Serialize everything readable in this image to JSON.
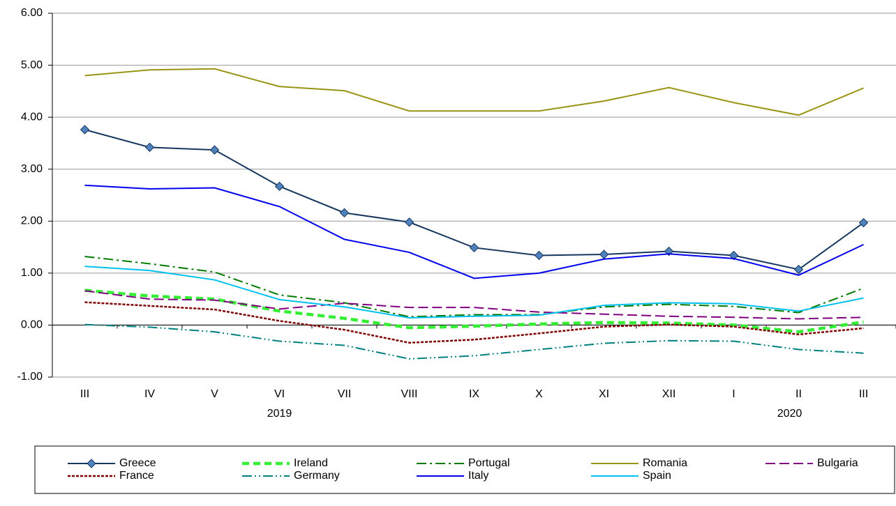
{
  "chart_data": {
    "type": "line",
    "categories": [
      "III",
      "IV",
      "V",
      "VI",
      "VII",
      "VIII",
      "IX",
      "X",
      "XI",
      "XII",
      "I",
      "II",
      "III"
    ],
    "x_groups": [
      "2019",
      "2020"
    ],
    "ylim": [
      -1,
      6
    ],
    "yticks": [
      {
        "value": -1,
        "label": "-1.00"
      },
      {
        "value": 0,
        "label": "0.00"
      },
      {
        "value": 1,
        "label": "1.00"
      },
      {
        "value": 2,
        "label": "2.00"
      },
      {
        "value": 3,
        "label": "3.00"
      },
      {
        "value": 4,
        "label": "4.00"
      },
      {
        "value": 5,
        "label": "5.00"
      },
      {
        "value": 6,
        "label": "6.00"
      }
    ],
    "grid": true,
    "legend": "bottom",
    "series": [
      {
        "name": "Greece",
        "color": "#17375e",
        "dash": "solid",
        "width": 2,
        "marker": "diamond",
        "marker_color": "#4f81bd",
        "values": [
          3.76,
          3.42,
          3.37,
          2.67,
          2.16,
          1.98,
          1.49,
          1.34,
          1.36,
          1.42,
          1.34,
          1.07,
          1.97
        ]
      },
      {
        "name": "Ireland",
        "color": "#33ee33",
        "dash": "10 6",
        "width": 4.5,
        "values": [
          0.67,
          0.56,
          0.5,
          0.27,
          0.13,
          -0.05,
          -0.02,
          0.02,
          0.05,
          0.04,
          0.0,
          -0.13,
          0.06
        ]
      },
      {
        "name": "Portugal",
        "color": "#007a00",
        "dash": "14 5 3 5",
        "width": 2,
        "values": [
          1.32,
          1.18,
          1.02,
          0.58,
          0.43,
          0.16,
          0.2,
          0.2,
          0.35,
          0.4,
          0.36,
          0.24,
          0.71
        ]
      },
      {
        "name": "Romania",
        "color": "#999414",
        "dash": "solid",
        "width": 2,
        "values": [
          4.8,
          4.91,
          4.93,
          4.59,
          4.51,
          4.12,
          4.12,
          4.12,
          4.31,
          4.57,
          4.28,
          4.04,
          4.56
        ]
      },
      {
        "name": "Bulgaria",
        "color": "#800080",
        "dash": "14 6",
        "width": 2,
        "values": [
          0.66,
          0.5,
          0.48,
          0.31,
          0.42,
          0.34,
          0.34,
          0.25,
          0.21,
          0.17,
          0.15,
          0.12,
          0.15
        ]
      },
      {
        "name": "France",
        "color": "#800000",
        "dash": "4 2",
        "width": 2.5,
        "values": [
          0.44,
          0.37,
          0.3,
          0.08,
          -0.09,
          -0.34,
          -0.28,
          -0.16,
          -0.03,
          0.01,
          -0.03,
          -0.18,
          -0.06
        ]
      },
      {
        "name": "Germany",
        "color": "#008080",
        "dash": "14 4 2 4 2 4",
        "width": 2,
        "values": [
          0.01,
          -0.04,
          -0.13,
          -0.31,
          -0.39,
          -0.65,
          -0.59,
          -0.47,
          -0.35,
          -0.3,
          -0.31,
          -0.47,
          -0.54
        ]
      },
      {
        "name": "Italy",
        "color": "#0000ee",
        "dash": "solid",
        "width": 2,
        "values": [
          2.69,
          2.62,
          2.64,
          2.28,
          1.65,
          1.4,
          0.9,
          1.0,
          1.27,
          1.37,
          1.28,
          0.96,
          1.55
        ]
      },
      {
        "name": "Spain",
        "color": "#00c0f0",
        "dash": "solid",
        "width": 2,
        "values": [
          1.13,
          1.05,
          0.87,
          0.49,
          0.35,
          0.14,
          0.17,
          0.19,
          0.38,
          0.43,
          0.41,
          0.27,
          0.52
        ]
      }
    ]
  }
}
